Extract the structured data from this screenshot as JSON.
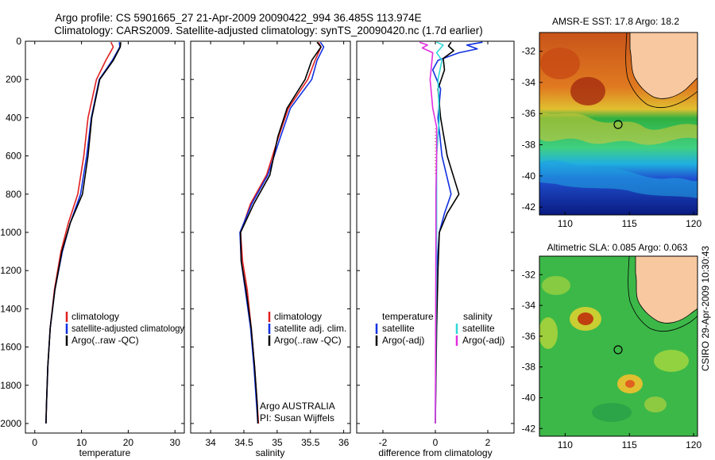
{
  "header": {
    "line1": "Argo profile: CS 5901665_27 21-Apr-2009 20090422_994 36.485S 113.974E",
    "line2": "Climatology: CARS2009. Satellite-adjusted climatology: synTS_20090420.nc (1.7d earlier)"
  },
  "footer_stamp": "CSIRO 29-Apr-2009 10:30:43",
  "institution": {
    "line1": "Argo AUSTRALIA",
    "line2": "PI: Susan Wijffels"
  },
  "colors": {
    "climatology": "#e02020",
    "satellite": "#1030e0",
    "argo": "#000000",
    "sal_satellite": "#30d8d8",
    "sal_argo": "#e030e0"
  },
  "chart_data": [
    {
      "type": "line",
      "id": "temperature",
      "xlabel": "temperature",
      "xlim": [
        -2,
        32
      ],
      "ylim": [
        2050,
        0
      ],
      "xticks": [
        "0",
        "10",
        "20",
        "30"
      ],
      "yticks": [
        "0",
        "200",
        "400",
        "600",
        "800",
        "1000",
        "1200",
        "1400",
        "1600",
        "1800",
        "2000"
      ],
      "legend": [
        "climatology",
        "satellite-adjusted climatology",
        "Argo(..raw -QC)"
      ],
      "series": [
        {
          "name": "climatology",
          "color": "#e02020",
          "points": [
            [
              16.3,
              5
            ],
            [
              16.8,
              30
            ],
            [
              15.2,
              100
            ],
            [
              13.2,
              200
            ],
            [
              11.4,
              400
            ],
            [
              10.5,
              600
            ],
            [
              9.2,
              800
            ],
            [
              7.2,
              950
            ],
            [
              5.6,
              1100
            ],
            [
              4.2,
              1300
            ],
            [
              3.3,
              1500
            ],
            [
              2.8,
              1700
            ],
            [
              2.5,
              1900
            ],
            [
              2.4,
              2000
            ]
          ]
        },
        {
          "name": "satellite-adjusted climatology",
          "color": "#1030e0",
          "points": [
            [
              18.1,
              5
            ],
            [
              18.2,
              30
            ],
            [
              16.6,
              100
            ],
            [
              13.8,
              200
            ],
            [
              12.1,
              400
            ],
            [
              11.1,
              600
            ],
            [
              9.8,
              800
            ],
            [
              7.6,
              950
            ],
            [
              5.9,
              1100
            ],
            [
              4.3,
              1300
            ],
            [
              3.3,
              1500
            ],
            [
              2.8,
              1700
            ],
            [
              2.5,
              1900
            ],
            [
              2.4,
              2000
            ]
          ]
        },
        {
          "name": "Argo(..raw -QC)",
          "color": "#000000",
          "points": [
            [
              18.4,
              5
            ],
            [
              18.3,
              30
            ],
            [
              16.8,
              100
            ],
            [
              13.9,
              200
            ],
            [
              12.2,
              400
            ],
            [
              11.4,
              600
            ],
            [
              10.2,
              800
            ],
            [
              7.6,
              950
            ],
            [
              5.8,
              1100
            ],
            [
              4.3,
              1300
            ],
            [
              3.3,
              1500
            ],
            [
              2.8,
              1700
            ],
            [
              2.5,
              1900
            ],
            [
              2.4,
              2000
            ]
          ]
        }
      ]
    },
    {
      "type": "line",
      "id": "salinity",
      "xlabel": "salinity",
      "xlim": [
        33.7,
        36.1
      ],
      "ylim": [
        2050,
        0
      ],
      "xticks": [
        "34",
        "34.5",
        "35",
        "35.5",
        "36"
      ],
      "legend": [
        "climatology",
        "satellite adj. clim.",
        "Argo(..raw -QC)"
      ],
      "series": [
        {
          "name": "climatology",
          "color": "#e02020",
          "points": [
            [
              35.62,
              5
            ],
            [
              35.66,
              30
            ],
            [
              35.57,
              100
            ],
            [
              35.46,
              200
            ],
            [
              35.17,
              350
            ],
            [
              35.02,
              500
            ],
            [
              34.84,
              700
            ],
            [
              34.6,
              850
            ],
            [
              34.45,
              1000
            ],
            [
              34.48,
              1150
            ],
            [
              34.55,
              1300
            ],
            [
              34.61,
              1500
            ],
            [
              34.66,
              1700
            ],
            [
              34.7,
              1900
            ],
            [
              34.72,
              2000
            ]
          ]
        },
        {
          "name": "satellite adj. clim.",
          "color": "#1030e0",
          "points": [
            [
              35.65,
              5
            ],
            [
              35.7,
              30
            ],
            [
              35.6,
              100
            ],
            [
              35.52,
              200
            ],
            [
              35.2,
              350
            ],
            [
              35.05,
              500
            ],
            [
              34.86,
              700
            ],
            [
              34.62,
              850
            ],
            [
              34.44,
              1000
            ],
            [
              34.46,
              1150
            ],
            [
              34.52,
              1300
            ],
            [
              34.6,
              1500
            ],
            [
              34.65,
              1700
            ],
            [
              34.69,
              1900
            ],
            [
              34.71,
              2000
            ]
          ]
        },
        {
          "name": "Argo(..raw -QC)",
          "color": "#000000",
          "points": [
            [
              35.6,
              5
            ],
            [
              35.66,
              30
            ],
            [
              35.52,
              100
            ],
            [
              35.42,
              200
            ],
            [
              35.15,
              350
            ],
            [
              35.01,
              500
            ],
            [
              34.89,
              700
            ],
            [
              34.65,
              850
            ],
            [
              34.45,
              1000
            ],
            [
              34.46,
              1150
            ],
            [
              34.53,
              1300
            ],
            [
              34.61,
              1500
            ],
            [
              34.66,
              1700
            ],
            [
              34.7,
              1900
            ],
            [
              34.71,
              2000
            ]
          ]
        }
      ]
    },
    {
      "type": "line",
      "id": "difference",
      "xlabel": "difference from climatology",
      "xlim": [
        -3,
        3
      ],
      "ylim": [
        2050,
        0
      ],
      "xticks": [
        "-2",
        "0",
        "2"
      ],
      "legend_titles": [
        "temperature",
        "salinity"
      ],
      "legend": [
        "satellite",
        "Argo(-adj)",
        "satellite",
        "Argo(-adj)"
      ],
      "series": [
        {
          "name": "temperature satellite",
          "color": "#1030e0",
          "points": [
            [
              1.8,
              5
            ],
            [
              1.2,
              20
            ],
            [
              1.6,
              40
            ],
            [
              0.9,
              60
            ],
            [
              0.1,
              100
            ],
            [
              -0.1,
              150
            ],
            [
              0.2,
              250
            ],
            [
              0.1,
              400
            ],
            [
              0.25,
              600
            ],
            [
              0.6,
              800
            ],
            [
              0.35,
              900
            ],
            [
              0.15,
              1000
            ],
            [
              0.05,
              1200
            ],
            [
              0.02,
              1500
            ],
            [
              0,
              2000
            ]
          ]
        },
        {
          "name": "temperature Argo(-adj)",
          "color": "#000000",
          "points": [
            [
              0.6,
              5
            ],
            [
              0.5,
              25
            ],
            [
              0.7,
              50
            ],
            [
              0.3,
              90
            ],
            [
              0.35,
              150
            ],
            [
              0.1,
              250
            ],
            [
              0.2,
              400
            ],
            [
              0.45,
              600
            ],
            [
              0.9,
              800
            ],
            [
              0.45,
              900
            ],
            [
              0.15,
              1000
            ],
            [
              0.1,
              1200
            ],
            [
              0.05,
              1500
            ],
            [
              0,
              2000
            ]
          ]
        },
        {
          "name": "salinity satellite",
          "color": "#30d8d8",
          "points": [
            [
              0.05,
              5
            ],
            [
              0.3,
              20
            ],
            [
              0.05,
              60
            ],
            [
              0.25,
              100
            ],
            [
              0.1,
              200
            ],
            [
              0.15,
              400
            ],
            [
              0.05,
              600
            ],
            [
              0.05,
              800
            ],
            [
              0.05,
              1000
            ],
            [
              0.02,
              1500
            ],
            [
              0,
              2000
            ]
          ]
        },
        {
          "name": "salinity Argo(-adj)",
          "color": "#e030e0",
          "points": [
            [
              -0.6,
              5
            ],
            [
              -0.3,
              20
            ],
            [
              -0.5,
              35
            ],
            [
              -0.1,
              60
            ],
            [
              -0.2,
              200
            ],
            [
              -0.1,
              350
            ],
            [
              0.05,
              450
            ],
            [
              0.05,
              600
            ],
            [
              0.02,
              800
            ],
            [
              0.02,
              1000
            ],
            [
              0,
              2000
            ]
          ]
        }
      ]
    }
  ],
  "maps": [
    {
      "id": "sst",
      "title": "AMSR-E SST: 17.8 Argo: 18.2",
      "xticks": [
        "110",
        "115",
        "120"
      ],
      "yticks": [
        "-32",
        "-34",
        "-36",
        "-38",
        "-40",
        "-42"
      ],
      "xlim": [
        108,
        120.3
      ],
      "ylim": [
        -42.5,
        -30.8
      ],
      "argo_pos": [
        113.974,
        -36.485
      ]
    },
    {
      "id": "sla",
      "title": "Altimetric SLA: 0.085 Argo: 0.063",
      "xticks": [
        "110",
        "115",
        "120"
      ],
      "yticks": [
        "-32",
        "-34",
        "-36",
        "-38",
        "-40",
        "-42"
      ],
      "xlim": [
        108,
        120.3
      ],
      "ylim": [
        -42.5,
        -30.8
      ],
      "argo_pos": [
        113.974,
        -36.485
      ]
    }
  ]
}
